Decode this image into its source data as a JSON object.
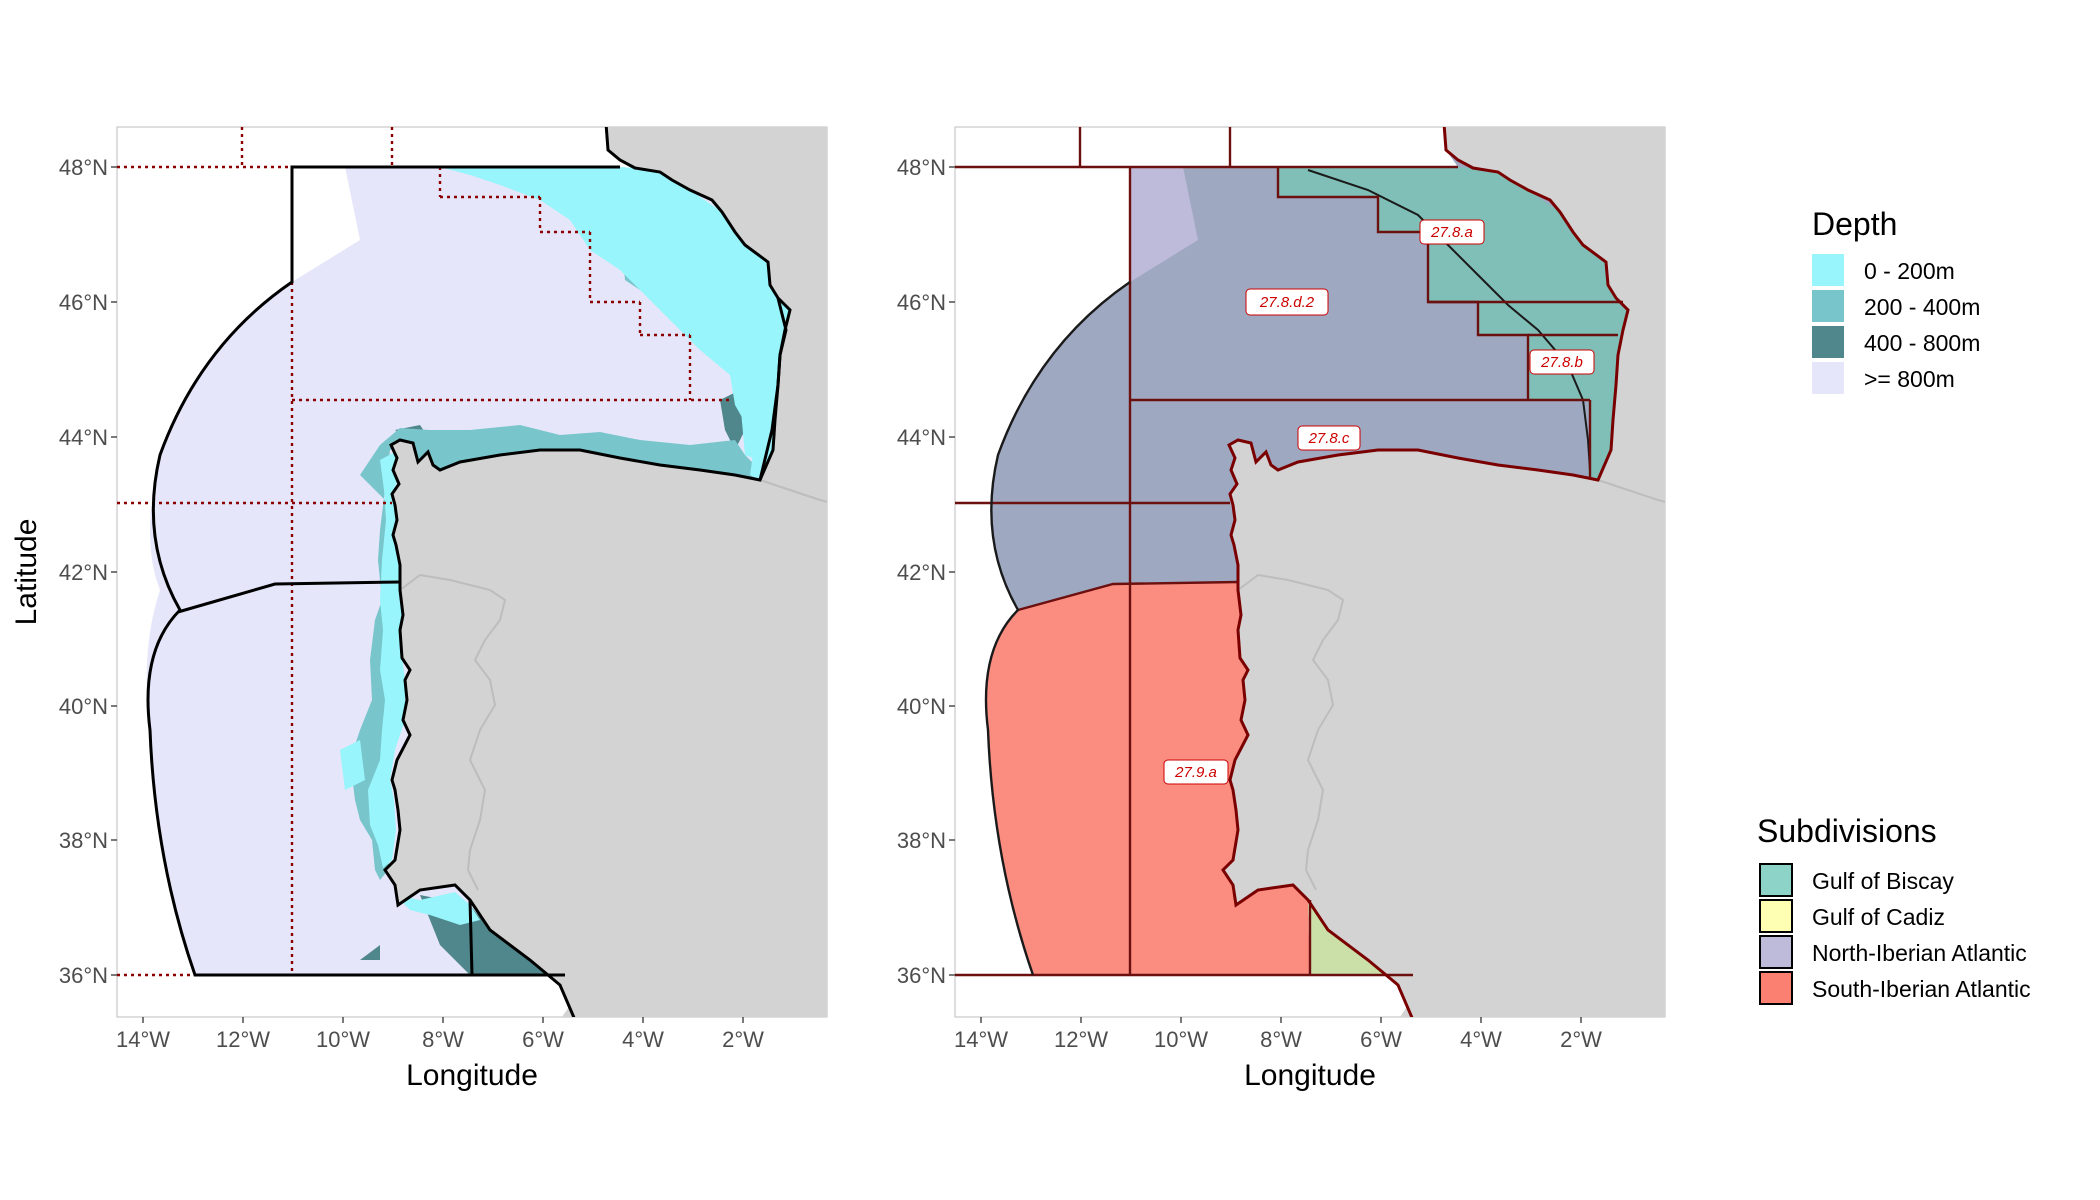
{
  "colors": {
    "land": "#d3d3d3",
    "depth_0_200": "#98f5fc",
    "depth_200_400": "#78c5cb",
    "depth_400_800": "#4f878c",
    "depth_800": "#e6e6fa",
    "ices_line": "#8b0000",
    "label_text": "#cc0000",
    "gulf_of_biscay": "#8dd3c7",
    "gulf_of_cadiz": "#ffffb3",
    "north_iberian_atlantic": "#bebada",
    "south_iberian_atlantic": "#fb8072"
  },
  "left_map": {
    "xlabel": "Longitude",
    "ylabel": "Latitude"
  },
  "right_map": {
    "xlabel": "Longitude",
    "labels": {
      "a": "27.8.a",
      "b": "27.8.b",
      "c": "27.8.c",
      "d2": "27.8.d.2",
      "ixa": "27.9.a"
    }
  },
  "axes": {
    "x_ticks": [
      "14°W",
      "12°W",
      "10°W",
      "8°W",
      "6°W",
      "4°W",
      "2°W"
    ],
    "y_ticks": [
      "48°N",
      "46°N",
      "44°N",
      "42°N",
      "40°N",
      "38°N",
      "36°N"
    ]
  },
  "legend_depth": {
    "title": "Depth",
    "items": [
      "0 - 200m",
      "200 - 400m",
      "400 - 800m",
      ">= 800m"
    ]
  },
  "legend_subdivisions": {
    "title": "Subdivisions",
    "items": [
      "Gulf of Biscay",
      "Gulf of Cadiz",
      "North-Iberian Atlantic",
      "South-Iberian Atlantic"
    ]
  }
}
